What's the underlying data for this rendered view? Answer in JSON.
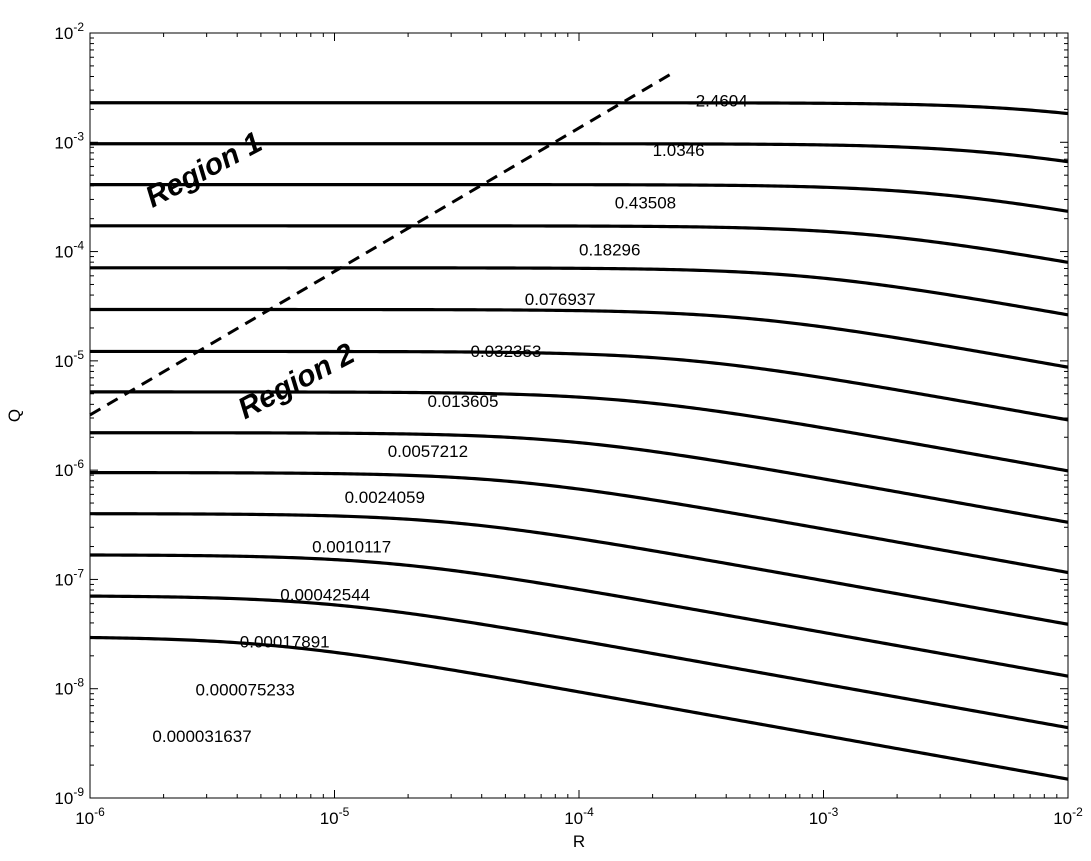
{
  "chart_data": {
    "type": "line",
    "title": "",
    "xlabel": "R",
    "ylabel": "Q",
    "xscale": "log",
    "yscale": "log",
    "xlim": [
      1e-06,
      0.01
    ],
    "ylim": [
      1e-09,
      0.01
    ],
    "grid": false,
    "x_ticks": [
      {
        "base": "10",
        "exp": "-6"
      },
      {
        "base": "10",
        "exp": "-5"
      },
      {
        "base": "10",
        "exp": "-4"
      },
      {
        "base": "10",
        "exp": "-3"
      },
      {
        "base": "10",
        "exp": "-2"
      }
    ],
    "y_ticks": [
      {
        "base": "10",
        "exp": "-9"
      },
      {
        "base": "10",
        "exp": "-8"
      },
      {
        "base": "10",
        "exp": "-7"
      },
      {
        "base": "10",
        "exp": "-6"
      },
      {
        "base": "10",
        "exp": "-5"
      },
      {
        "base": "10",
        "exp": "-4"
      },
      {
        "base": "10",
        "exp": "-3"
      },
      {
        "base": "10",
        "exp": "-2"
      }
    ],
    "series": [
      {
        "label": "2.4604",
        "plateau": 0.0023,
        "label_at": [
          0.0003,
          0.0024
        ]
      },
      {
        "label": "1.0346",
        "plateau": 0.00097,
        "label_at": [
          0.0002,
          0.00085
        ]
      },
      {
        "label": "0.43508",
        "plateau": 0.00041,
        "label_at": [
          0.00014,
          0.00028
        ]
      },
      {
        "label": "0.18296",
        "plateau": 0.000172,
        "label_at": [
          0.0001,
          0.000105
        ]
      },
      {
        "label": "0.076937",
        "plateau": 7.1e-05,
        "label_at": [
          6e-05,
          3.7e-05
        ]
      },
      {
        "label": "0.032353",
        "plateau": 2.95e-05,
        "label_at": [
          3.6e-05,
          1.23e-05
        ]
      },
      {
        "label": "0.013605",
        "plateau": 1.22e-05,
        "label_at": [
          2.4e-05,
          4.3e-06
        ]
      },
      {
        "label": "0.0057212",
        "plateau": 5.2e-06,
        "label_at": [
          1.65e-05,
          1.5e-06
        ]
      },
      {
        "label": "0.0024059",
        "plateau": 2.2e-06,
        "label_at": [
          1.1e-05,
          5.7e-07
        ]
      },
      {
        "label": "0.0010117",
        "plateau": 9.5e-07,
        "label_at": [
          8.1e-06,
          2e-07
        ]
      },
      {
        "label": "0.00042544",
        "plateau": 4e-07,
        "label_at": [
          6e-06,
          7.3e-08
        ]
      },
      {
        "label": "0.00017891",
        "plateau": 1.68e-07,
        "label_at": [
          4.1e-06,
          2.7e-08
        ]
      },
      {
        "label": "0.000075233",
        "plateau": 7.1e-08,
        "label_at": [
          2.7e-06,
          9.8e-09
        ]
      },
      {
        "label": "0.000031637",
        "plateau": 3e-08,
        "label_at": [
          1.8e-06,
          3.7e-09
        ]
      }
    ],
    "boundary": {
      "style": "dashed",
      "points": [
        [
          1e-06,
          3.2e-06
        ],
        [
          0.00025,
          0.0045
        ]
      ]
    },
    "annotations": [
      {
        "text": "Region 1",
        "at": [
          1.8e-06,
          0.00025
        ]
      },
      {
        "text": "Region 2",
        "at": [
          4.3e-06,
          2.9e-06
        ]
      }
    ]
  }
}
